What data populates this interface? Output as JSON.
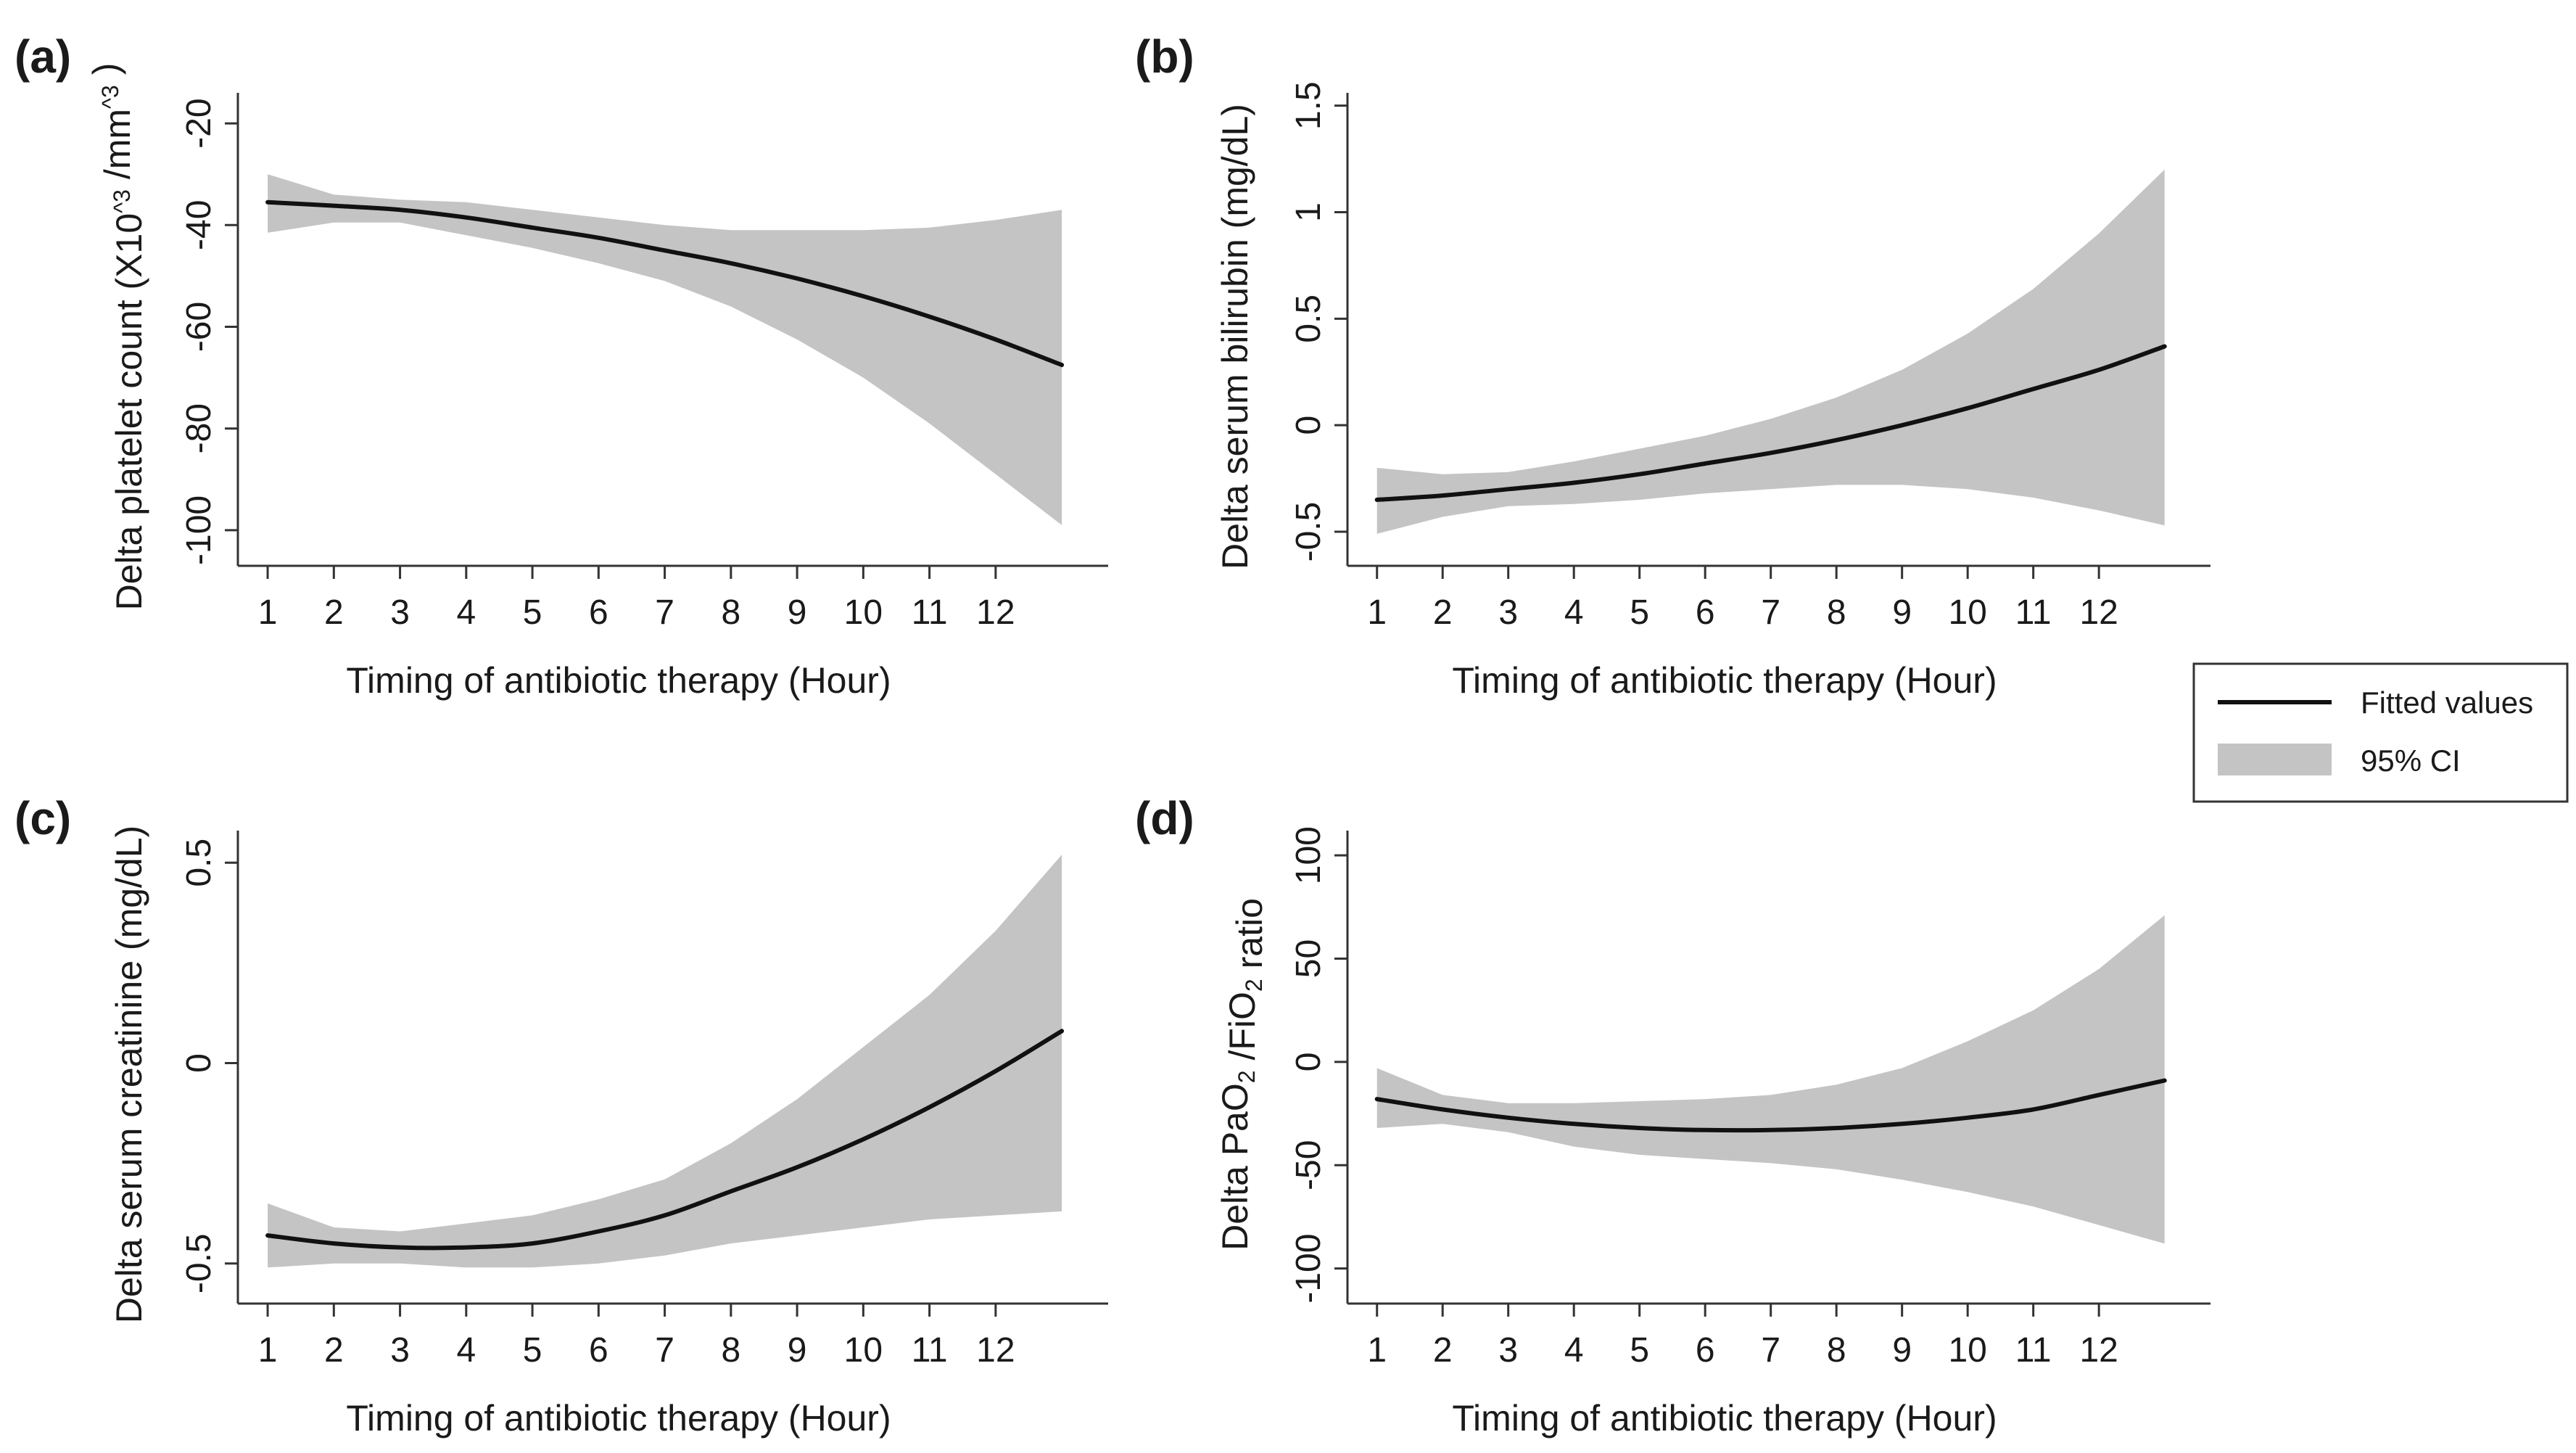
{
  "legend": {
    "fitted_label": "Fitted values",
    "ci_label": "95% CI",
    "placement": "right-middle"
  },
  "colors": {
    "fitted_line": "#111111",
    "ci_band": "#c4c4c4",
    "axis": "#333333"
  },
  "chart_data": [
    {
      "type": "line",
      "panel": "(a)",
      "xlabel": "Timing of antibiotic therapy (Hour)",
      "ylabel": "Delta platelet count (X10^3 /mm^3 )",
      "xticks": [
        1,
        2,
        3,
        4,
        5,
        6,
        7,
        8,
        9,
        10,
        11,
        12
      ],
      "yticks": [
        -100,
        -80,
        -60,
        -40,
        -20
      ],
      "ytick_labels": [
        "-100",
        "-80",
        "-60",
        "-40",
        "-20"
      ],
      "xlim": [
        0.55,
        13.7
      ],
      "ylim": [
        -107,
        -14
      ],
      "x": [
        1,
        2,
        3,
        4,
        5,
        6,
        7,
        8,
        9,
        10,
        11,
        12,
        13
      ],
      "fitted": [
        -35.5,
        -36.2,
        -37.0,
        -38.5,
        -40.5,
        -42.5,
        -45.0,
        -47.5,
        -50.5,
        -54.0,
        -58.0,
        -62.5,
        -67.5
      ],
      "ci_lower": [
        -41.5,
        -39.5,
        -39.5,
        -42.0,
        -44.5,
        -47.5,
        -51.0,
        -56.0,
        -62.5,
        -70.0,
        -79.0,
        -89.0,
        -99.0
      ],
      "ci_upper": [
        -30.0,
        -34.0,
        -35.0,
        -35.5,
        -37.0,
        -38.5,
        -40.0,
        -41.0,
        -41.0,
        -41.0,
        -40.5,
        -39.0,
        -37.0
      ],
      "series": [
        {
          "name": "Fitted values",
          "role": "fitted"
        },
        {
          "name": "95% CI",
          "role": "ci"
        }
      ]
    },
    {
      "type": "line",
      "panel": "(b)",
      "xlabel": "Timing of antibiotic therapy (Hour)",
      "ylabel": "Delta serum bilirubin (mg/dL)",
      "xticks": [
        1,
        2,
        3,
        4,
        5,
        6,
        7,
        8,
        9,
        10,
        11,
        12
      ],
      "yticks": [
        -0.5,
        0,
        0.5,
        1,
        1.5
      ],
      "ytick_labels": [
        "-0.5",
        "0",
        "0.5",
        "1",
        "1.5"
      ],
      "xlim": [
        0.55,
        13.7
      ],
      "ylim": [
        -0.66,
        1.56
      ],
      "x": [
        1,
        2,
        3,
        4,
        5,
        6,
        7,
        8,
        9,
        10,
        11,
        12,
        13
      ],
      "fitted": [
        -0.35,
        -0.33,
        -0.3,
        -0.27,
        -0.23,
        -0.18,
        -0.13,
        -0.07,
        0.0,
        0.08,
        0.17,
        0.26,
        0.37
      ],
      "ci_lower": [
        -0.51,
        -0.43,
        -0.38,
        -0.37,
        -0.35,
        -0.32,
        -0.3,
        -0.28,
        -0.28,
        -0.3,
        -0.34,
        -0.4,
        -0.47
      ],
      "ci_upper": [
        -0.2,
        -0.23,
        -0.22,
        -0.17,
        -0.11,
        -0.05,
        0.03,
        0.13,
        0.26,
        0.43,
        0.64,
        0.9,
        1.2
      ],
      "series": [
        {
          "name": "Fitted values",
          "role": "fitted"
        },
        {
          "name": "95% CI",
          "role": "ci"
        }
      ]
    },
    {
      "type": "line",
      "panel": "(c)",
      "xlabel": "Timing of antibiotic therapy (Hour)",
      "ylabel": "Delta serum creatinine (mg/dL)",
      "xticks": [
        1,
        2,
        3,
        4,
        5,
        6,
        7,
        8,
        9,
        10,
        11,
        12
      ],
      "yticks": [
        -0.5,
        0,
        0.5
      ],
      "ytick_labels": [
        "-0.5",
        "0",
        "0.5"
      ],
      "xlim": [
        0.55,
        13.7
      ],
      "ylim": [
        -0.6,
        0.58
      ],
      "x": [
        1,
        2,
        3,
        4,
        5,
        6,
        7,
        8,
        9,
        10,
        11,
        12,
        13
      ],
      "fitted": [
        -0.43,
        -0.45,
        -0.46,
        -0.46,
        -0.45,
        -0.42,
        -0.38,
        -0.32,
        -0.26,
        -0.19,
        -0.11,
        -0.02,
        0.08
      ],
      "ci_lower": [
        -0.51,
        -0.5,
        -0.5,
        -0.51,
        -0.51,
        -0.5,
        -0.48,
        -0.45,
        -0.43,
        -0.41,
        -0.39,
        -0.38,
        -0.37
      ],
      "ci_upper": [
        -0.35,
        -0.41,
        -0.42,
        -0.4,
        -0.38,
        -0.34,
        -0.29,
        -0.2,
        -0.09,
        0.04,
        0.17,
        0.33,
        0.52
      ],
      "series": [
        {
          "name": "Fitted values",
          "role": "fitted"
        },
        {
          "name": "95% CI",
          "role": "ci"
        }
      ]
    },
    {
      "type": "line",
      "panel": "(d)",
      "xlabel": "Timing of antibiotic therapy (Hour)",
      "ylabel": "Delta PaO2 /FiO2 ratio",
      "xticks": [
        1,
        2,
        3,
        4,
        5,
        6,
        7,
        8,
        9,
        10,
        11,
        12
      ],
      "yticks": [
        -100,
        -50,
        0,
        50,
        100
      ],
      "ytick_labels": [
        "-100",
        "-50",
        "0",
        "50",
        "100"
      ],
      "xlim": [
        0.55,
        13.7
      ],
      "ylim": [
        -117,
        112
      ],
      "x": [
        1,
        2,
        3,
        4,
        5,
        6,
        7,
        8,
        9,
        10,
        11,
        12,
        13
      ],
      "fitted": [
        -18,
        -23,
        -27,
        -30,
        -32,
        -33,
        -33,
        -32,
        -30,
        -27,
        -23,
        -16,
        -9
      ],
      "ci_lower": [
        -32,
        -30,
        -34,
        -41,
        -45,
        -47,
        -49,
        -52,
        -57,
        -63,
        -70,
        -79,
        -88
      ],
      "ci_upper": [
        -3,
        -16,
        -20,
        -20,
        -19,
        -18,
        -16,
        -11,
        -3,
        10,
        25,
        45,
        71
      ],
      "series": [
        {
          "name": "Fitted values",
          "role": "fitted"
        },
        {
          "name": "95% CI",
          "role": "ci"
        }
      ]
    }
  ]
}
